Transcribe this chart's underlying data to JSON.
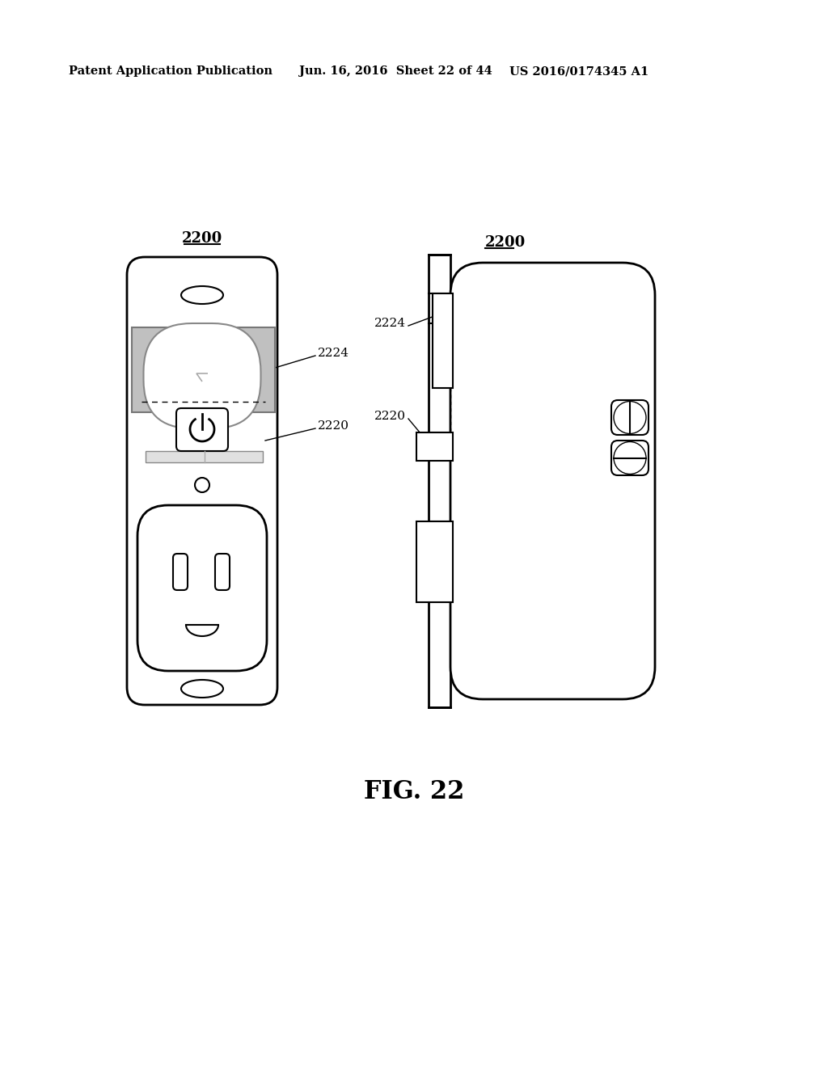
{
  "bg_color": "#ffffff",
  "header_left": "Patent Application Publication",
  "header_mid": "Jun. 16, 2016  Sheet 22 of 44",
  "header_right": "US 2016/0174345 A1",
  "fig_label": "FIG. 22",
  "lbl_2200": "2200",
  "lbl_2224": "2224",
  "lbl_2220": "2220"
}
